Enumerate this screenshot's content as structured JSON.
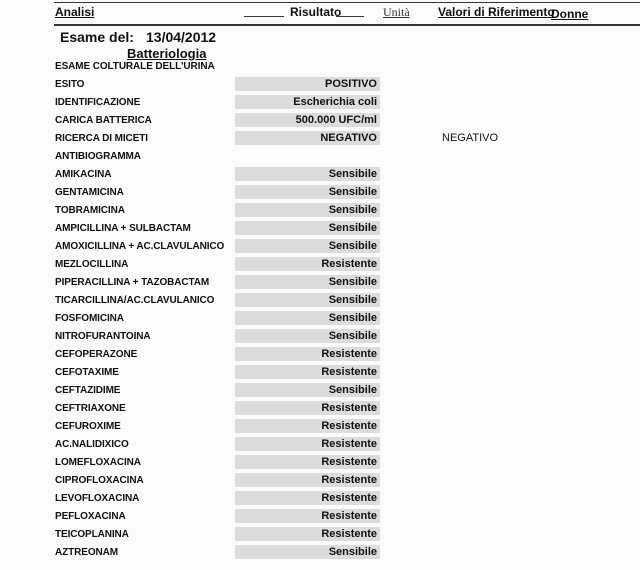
{
  "header": {
    "analisi": "Analisi",
    "risultato": "Risultato",
    "unita": "Unità",
    "valori": "Valori di Riferimento",
    "donne": "Donne"
  },
  "exam": {
    "label": "Esame del:",
    "date": "13/04/2012"
  },
  "section": "Batteriologia",
  "subsection": "ESAME COLTURALE DELL'URINA",
  "rows": [
    {
      "label": "ESITO",
      "result": "POSITIVO"
    },
    {
      "label": "IDENTIFICAZIONE",
      "result": "Escherichia coli"
    },
    {
      "label": "CARICA BATTERICA",
      "result": "500.000 UFC/ml"
    },
    {
      "label": "RICERCA DI MICETI",
      "result": "NEGATIVO",
      "reference": "NEGATIVO"
    }
  ],
  "antibiogram_title": "ANTIBIOGRAMMA",
  "antibiogram": [
    {
      "label": "AMIKACINA",
      "result": "Sensibile"
    },
    {
      "label": "GENTAMICINA",
      "result": "Sensibile"
    },
    {
      "label": "TOBRAMICINA",
      "result": "Sensibile"
    },
    {
      "label": "AMPICILLINA + SULBACTAM",
      "result": "Sensibile"
    },
    {
      "label": "AMOXICILLINA + AC.CLAVULANICO",
      "result": "Sensibile"
    },
    {
      "label": "MEZLOCILLINA",
      "result": "Resistente"
    },
    {
      "label": "PIPERACILLINA + TAZOBACTAM",
      "result": "Sensibile"
    },
    {
      "label": "TICARCILLINA/AC.CLAVULANICO",
      "result": "Sensibile"
    },
    {
      "label": "FOSFOMICINA",
      "result": "Sensibile"
    },
    {
      "label": "NITROFURANTOINA",
      "result": "Sensibile"
    },
    {
      "label": "CEFOPERAZONE",
      "result": "Resistente"
    },
    {
      "label": "CEFOTAXIME",
      "result": "Resistente"
    },
    {
      "label": "CEFTAZIDIME",
      "result": "Sensibile"
    },
    {
      "label": "CEFTRIAXONE",
      "result": "Resistente"
    },
    {
      "label": "CEFUROXIME",
      "result": "Resistente"
    },
    {
      "label": "AC.NALIDIXICO",
      "result": "Resistente"
    },
    {
      "label": "LOMEFLOXACINA",
      "result": "Resistente"
    },
    {
      "label": "CIPROFLOXACINA",
      "result": "Resistente"
    },
    {
      "label": "LEVOFLOXACINA",
      "result": "Resistente"
    },
    {
      "label": "PEFLOXACINA",
      "result": "Resistente"
    },
    {
      "label": "TEICOPLANINA",
      "result": "Resistente"
    },
    {
      "label": "AZTREONAM",
      "result": "Sensibile"
    }
  ]
}
